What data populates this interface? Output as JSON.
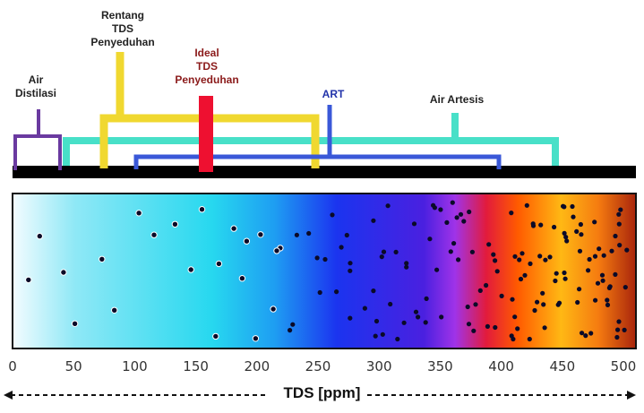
{
  "labels": {
    "air_distilasi": "Air\nDistilasi",
    "rentang_tds": "Rentang\nTDS\nPenyeduhan",
    "ideal_tds": "Ideal\nTDS\nPenyeduhan",
    "art": "ART",
    "air_artesis": "Air Artesis"
  },
  "axis": {
    "title": "TDS [ppm]",
    "min": 0,
    "max": 500,
    "ticks": [
      0,
      50,
      100,
      150,
      200,
      250,
      300,
      350,
      400,
      450,
      500
    ]
  },
  "ranges": [
    {
      "name": "Air Distilasi",
      "from": 0,
      "to": 40,
      "color": "#6a3aa0"
    },
    {
      "name": "Air Artesis",
      "from": 45,
      "to": 450,
      "color": "#48e0c8"
    },
    {
      "name": "Rentang TDS Penyeduhan",
      "from": 75,
      "to": 250,
      "color": "#f0d830"
    },
    {
      "name": "Ideal TDS Penyeduhan",
      "from": 150,
      "to": 160,
      "color": "#ee1030"
    },
    {
      "name": "ART",
      "from": 100,
      "to": 400,
      "color": "#3a58d8"
    }
  ],
  "colors": {
    "purple": "#6a3aa0",
    "yellow": "#f0d830",
    "red": "#ee1030",
    "blue": "#3a58d8",
    "teal": "#48e0c8",
    "ideal_text": "#8b1a1a",
    "art_text": "#2233aa"
  }
}
